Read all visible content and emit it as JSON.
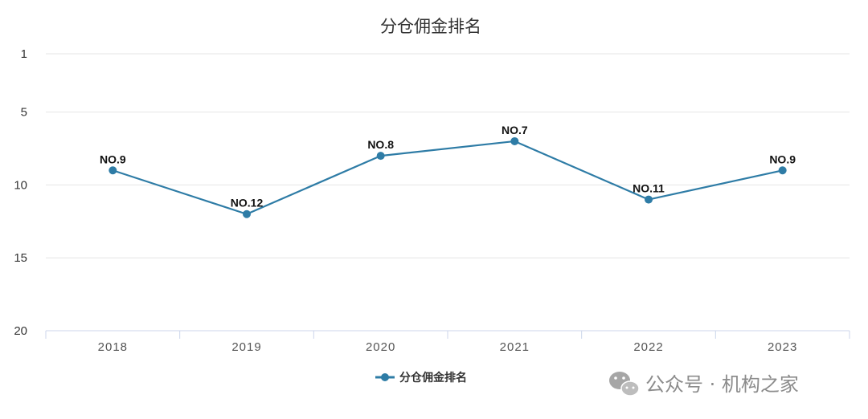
{
  "chart_data": {
    "type": "line",
    "title": "分仓佣金排名",
    "categories": [
      "2018",
      "2019",
      "2020",
      "2021",
      "2022",
      "2023"
    ],
    "series": [
      {
        "name": "分仓佣金排名",
        "values": [
          9,
          12,
          8,
          7,
          11,
          9
        ],
        "labels": [
          "NO.9",
          "NO.12",
          "NO.8",
          "NO.7",
          "NO.11",
          "NO.9"
        ],
        "color": "#2e7ca6"
      }
    ],
    "yticks": [
      "1",
      "5",
      "10",
      "15",
      "20"
    ],
    "ylim": [
      1,
      20
    ],
    "y_inverted": true,
    "grid": true,
    "legend_position": "bottom-center"
  },
  "watermark": {
    "text": "公众号 · 机构之家",
    "icon": "wechat-icon"
  }
}
